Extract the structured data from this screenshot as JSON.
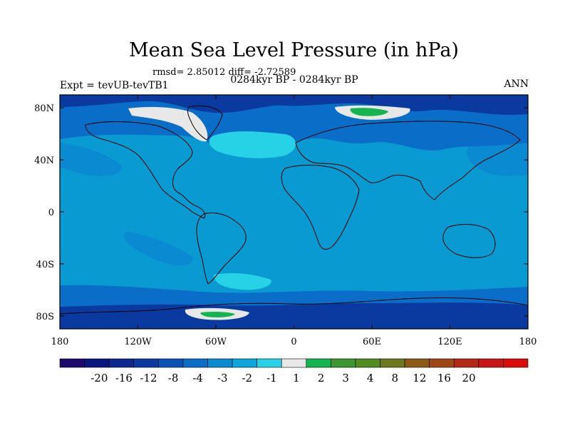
{
  "title": "Mean Sea Level Pressure (in hPa)",
  "stats_text": "rmsd= 2.85012 diff= -2.72589",
  "expt_text": "Expt = tevUB-tevTB1",
  "period_text": "0284kyr BP - 0284kyr BP",
  "season_text": "ANN",
  "map": {
    "projection": "cylindrical-equidistant",
    "lon_range": [
      -180,
      180
    ],
    "lat_range": [
      -90,
      90
    ],
    "lon_ticks": [
      {
        "value": -180,
        "label": "180"
      },
      {
        "value": -120,
        "label": "120W"
      },
      {
        "value": -60,
        "label": "60W"
      },
      {
        "value": 0,
        "label": "0"
      },
      {
        "value": 60,
        "label": "60E"
      },
      {
        "value": 120,
        "label": "120E"
      },
      {
        "value": 180,
        "label": "180"
      }
    ],
    "lat_ticks": [
      {
        "value": 80,
        "label": "80N"
      },
      {
        "value": 40,
        "label": "40N"
      },
      {
        "value": 0,
        "label": "0"
      },
      {
        "value": -40,
        "label": "40S"
      },
      {
        "value": -80,
        "label": "80S"
      }
    ],
    "background_level_color": "#0a9ad2"
  },
  "colorbar": {
    "colors": [
      "#1c0a6e",
      "#0a1680",
      "#0a2890",
      "#0a3aa0",
      "#0a52b8",
      "#0a6ec8",
      "#0a8ad0",
      "#0aa6dc",
      "#28d2e6",
      "#e8e8e8",
      "#14b450",
      "#3c9632",
      "#508c1e",
      "#6e781e",
      "#8c5a14",
      "#a04614",
      "#b42814",
      "#c81414",
      "#dc0a0a"
    ],
    "labels": [
      "-20",
      "-16",
      "-12",
      "-8",
      "-4",
      "-3",
      "-2",
      "-1",
      "1",
      "2",
      "3",
      "4",
      "8",
      "12",
      "16",
      "20"
    ]
  }
}
